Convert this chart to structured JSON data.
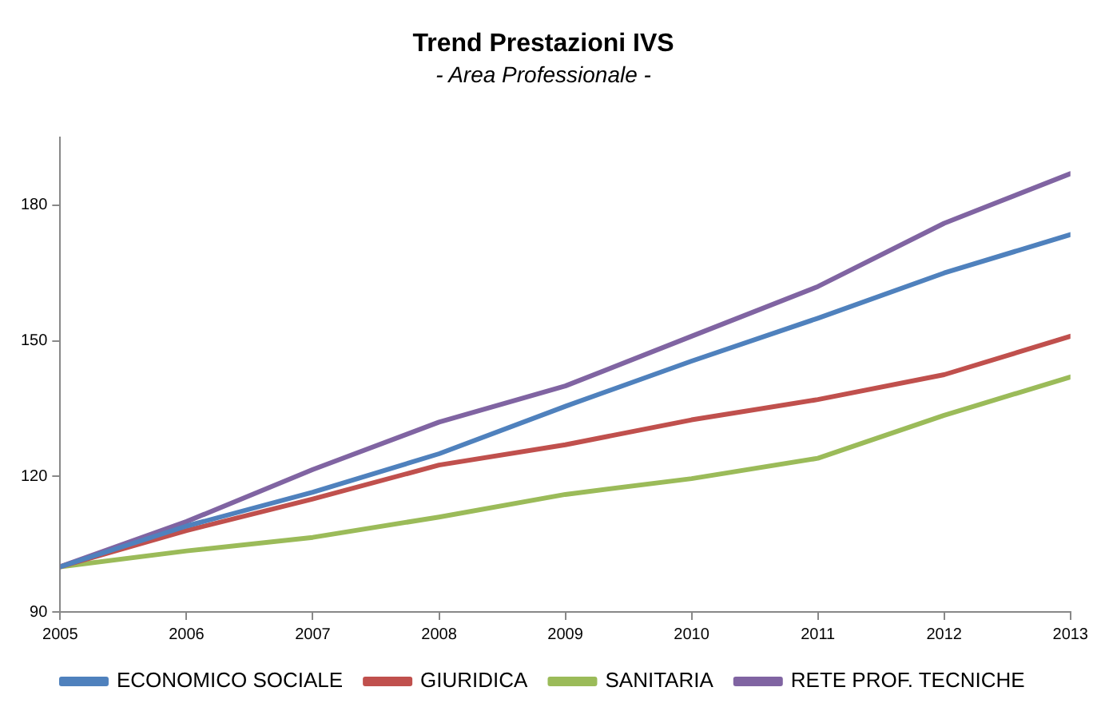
{
  "chart_data": {
    "type": "line",
    "title": "Trend Prestazioni IVS",
    "subtitle": "- Area Professionale -",
    "x": [
      2005,
      2006,
      2007,
      2008,
      2009,
      2010,
      2011,
      2012,
      2013
    ],
    "xlim": [
      2005,
      2013
    ],
    "xticks": [
      2005,
      2006,
      2007,
      2008,
      2009,
      2010,
      2011,
      2012,
      2013
    ],
    "ylim": [
      90,
      195
    ],
    "yticks": [
      90,
      120,
      150,
      180
    ],
    "grid": false,
    "legend": "bottom",
    "marker": "none",
    "line_style": "solid",
    "series": [
      {
        "name": "ECONOMICO SOCIALE",
        "color": "#4f81bd",
        "values": [
          100,
          109,
          116.5,
          125,
          135.5,
          145.5,
          155,
          165,
          173.5
        ]
      },
      {
        "name": "GIURIDICA",
        "color": "#c0504d",
        "values": [
          100,
          108,
          115,
          122.5,
          127,
          132.5,
          137,
          142.5,
          151
        ]
      },
      {
        "name": "SANITARIA",
        "color": "#9bbb59",
        "values": [
          100,
          103.5,
          106.5,
          111,
          116,
          119.5,
          124,
          133.5,
          142
        ]
      },
      {
        "name": "RETE PROF. TECNICHE",
        "color": "#8064a2",
        "values": [
          100,
          110,
          121.5,
          132,
          140,
          151,
          162,
          176,
          187
        ]
      }
    ]
  }
}
